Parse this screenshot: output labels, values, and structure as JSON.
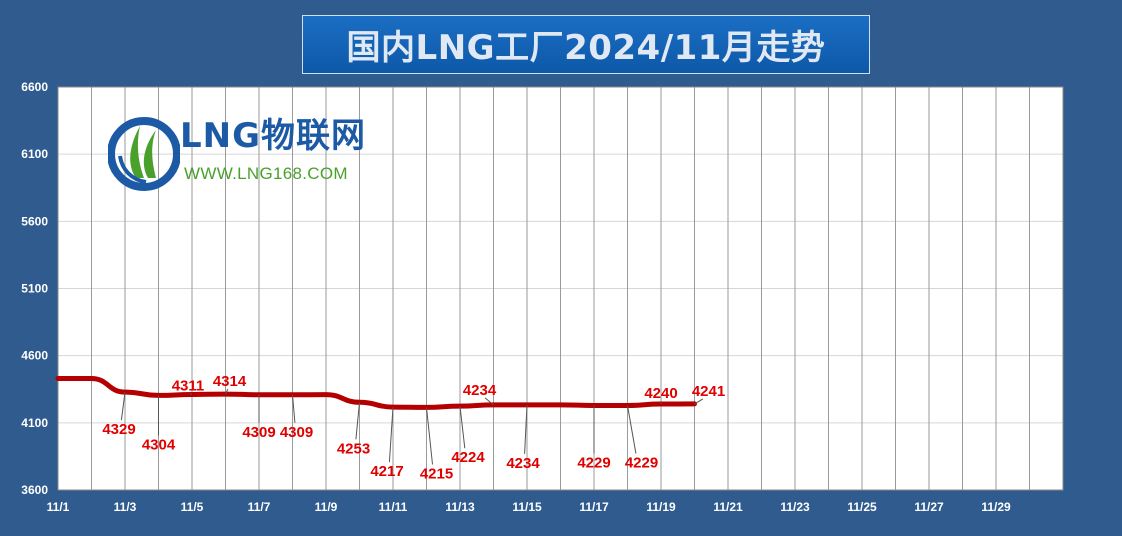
{
  "title": "国内LNG工厂2024/11月走势",
  "logo": {
    "brand": "LNG物联网",
    "website": "WWW.LNG168.COM",
    "icon": "lng-logo-icon"
  },
  "colors": {
    "background": "#2f5b8f",
    "plot_background": "#ffffff",
    "line": "#b40000",
    "labels": "#e00000"
  },
  "chart_data": {
    "type": "line",
    "title": "国内LNG工厂2024/11月走势",
    "xlabel": "",
    "ylabel": "",
    "ylim": [
      3600,
      6600
    ],
    "yticks": [
      3600,
      4100,
      4600,
      5100,
      5600,
      6100,
      6600
    ],
    "xtick_labels": [
      "11/1",
      "11/3",
      "11/5",
      "11/7",
      "11/9",
      "11/11",
      "11/13",
      "11/15",
      "11/17",
      "11/19",
      "11/21",
      "11/23",
      "11/25",
      "11/27",
      "11/29"
    ],
    "x_days": [
      1,
      2,
      3,
      4,
      5,
      6,
      7,
      8,
      9,
      10,
      11,
      12,
      13,
      14,
      15,
      16,
      17,
      18,
      19,
      20
    ],
    "values": [
      4430,
      4430,
      4329,
      4304,
      4311,
      4314,
      4309,
      4309,
      4310,
      4253,
      4217,
      4215,
      4224,
      4234,
      4234,
      4234,
      4229,
      4229,
      4240,
      4241
    ],
    "grid": true,
    "legend": "none",
    "data_labels": [
      {
        "day": 3,
        "text": "4329"
      },
      {
        "day": 4,
        "text": "4304"
      },
      {
        "day": 5,
        "text": "4311"
      },
      {
        "day": 6,
        "text": "4314"
      },
      {
        "day": 7,
        "text": "4309"
      },
      {
        "day": 8,
        "text": "4309"
      },
      {
        "day": 10,
        "text": "4253"
      },
      {
        "day": 11,
        "text": "4217"
      },
      {
        "day": 12,
        "text": "4215"
      },
      {
        "day": 13,
        "text": "4224"
      },
      {
        "day": 14,
        "text": "4234"
      },
      {
        "day": 15,
        "text": "4234"
      },
      {
        "day": 17,
        "text": "4229"
      },
      {
        "day": 18,
        "text": "4229"
      },
      {
        "day": 19,
        "text": "4240"
      },
      {
        "day": 20,
        "text": "4241"
      }
    ]
  }
}
